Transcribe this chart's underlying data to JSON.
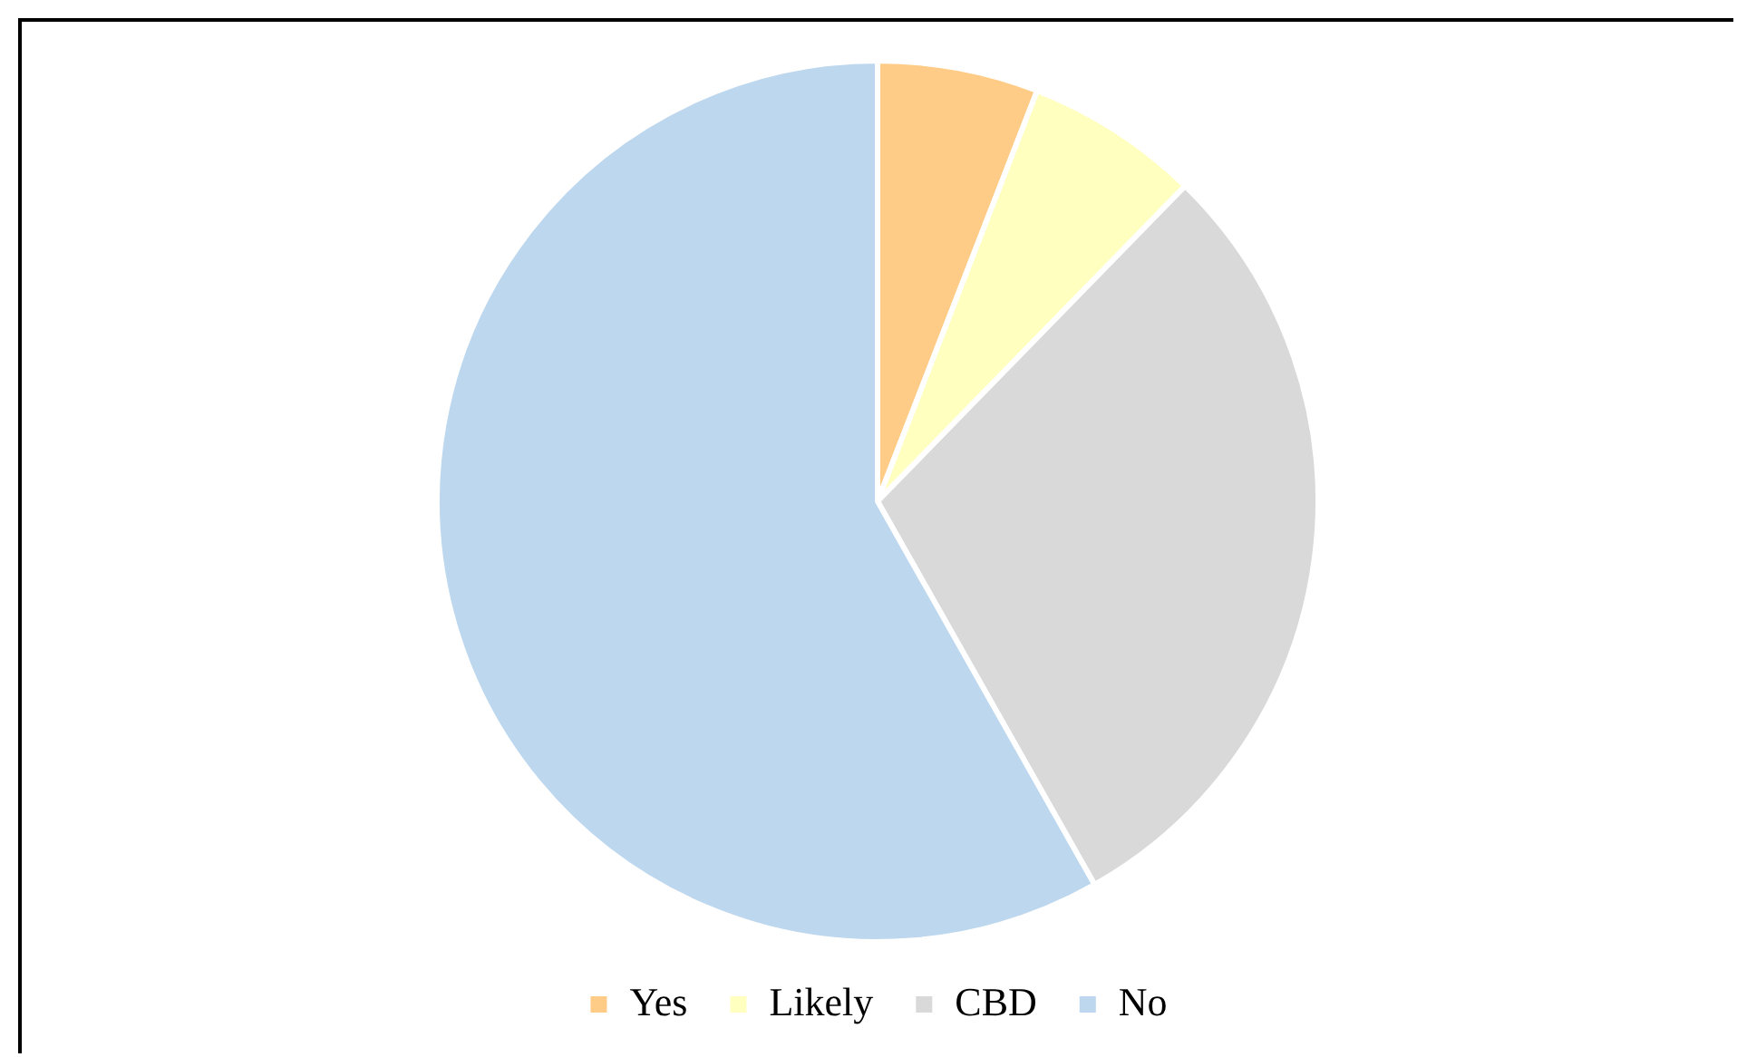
{
  "chart_data": {
    "type": "pie",
    "categories": [
      "Yes",
      "Likely",
      "CBD",
      "No"
    ],
    "values": [
      5.9,
      6.4,
      29.5,
      58.2
    ],
    "colors": [
      "#ffcc88",
      "#ffffc0",
      "#d9d9d9",
      "#bdd7ee"
    ],
    "legend": "bottom"
  }
}
